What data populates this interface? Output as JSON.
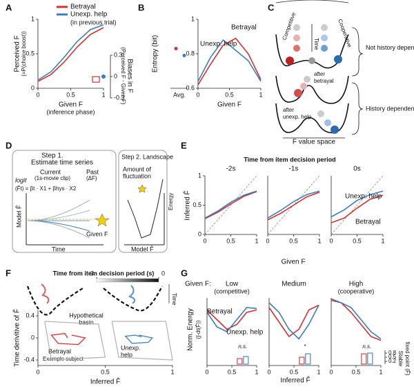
{
  "chart_data": [
    {
      "type": "line",
      "ylabel": "Perceived F",
      "ylabel_sub": "(=P(choice boost))",
      "xlabel": "Given F",
      "xlabel_sub": "(inference phase)",
      "legend_note": "(in previous trial)",
      "xlim": [
        0,
        1
      ],
      "xticks": [
        0,
        0.5,
        1
      ],
      "ylim": [
        0,
        1
      ],
      "yticks": [
        0,
        0.5,
        1
      ],
      "series": [
        {
          "name": "Betrayal",
          "color": "#d62f2f",
          "x": [
            0,
            0.2,
            0.4,
            0.6,
            0.8,
            1
          ],
          "values": [
            0.1,
            0.2,
            0.38,
            0.6,
            0.78,
            0.88
          ]
        },
        {
          "name": "Unexp. help",
          "color": "#3a7dbf",
          "x": [
            0,
            0.2,
            0.4,
            0.6,
            0.8,
            1
          ],
          "values": [
            0.12,
            0.24,
            0.45,
            0.68,
            0.85,
            0.92
          ]
        }
      ],
      "bias": {
        "ylabel": "Biases in F",
        "ylabel_sub": "(Perceived F - Given F)",
        "ylim": [
          -0.3,
          0.3
        ],
        "yticks": [
          -0.3,
          0,
          0.3
        ],
        "values": [
          -0.04,
          0
        ],
        "colors": [
          "#d62f2f",
          "#3a7dbf"
        ]
      }
    },
    {
      "type": "line",
      "ylabel": "Entropy (bit)",
      "xlabel": "Given F",
      "xlim": [
        0,
        1
      ],
      "xticks": [
        0,
        0.5,
        1
      ],
      "ylim": [
        0.6,
        1
      ],
      "yticks": [
        0.6,
        0.8,
        1
      ],
      "avg": {
        "label": "Avg.",
        "values": [
          0.83,
          0.79
        ]
      },
      "series": [
        {
          "name": "Betrayal",
          "color": "#d62f2f",
          "x": [
            0,
            0.2,
            0.4,
            0.6,
            0.8,
            1
          ],
          "values": [
            0.62,
            0.74,
            0.85,
            0.89,
            0.8,
            0.65
          ]
        },
        {
          "name": "Unexp. help",
          "color": "#3a7dbf",
          "x": [
            0,
            0.2,
            0.4,
            0.6,
            0.8,
            1
          ],
          "values": [
            0.64,
            0.78,
            0.88,
            0.82,
            0.76,
            0.64
          ]
        }
      ]
    },
    {
      "type": "line",
      "title": "-2s",
      "xlim": [
        0,
        1
      ],
      "xticks": [
        0,
        0.5,
        1
      ],
      "ylim": [
        0,
        1
      ],
      "yticks": [
        0,
        0.5,
        1
      ],
      "series": [
        {
          "color": "#d62f2f",
          "x": [
            0,
            0.25,
            0.5,
            0.75,
            1
          ],
          "values": [
            0.27,
            0.38,
            0.52,
            0.65,
            0.73
          ]
        },
        {
          "color": "#3a7dbf",
          "x": [
            0,
            0.25,
            0.5,
            0.75,
            1
          ],
          "values": [
            0.28,
            0.4,
            0.55,
            0.67,
            0.74
          ]
        }
      ]
    },
    {
      "type": "line",
      "title": "-1s",
      "xlim": [
        0,
        1
      ],
      "xticks": [
        0,
        0.5,
        1
      ],
      "ylim": [
        0,
        1
      ],
      "series": [
        {
          "color": "#d62f2f",
          "x": [
            0,
            0.25,
            0.5,
            0.75,
            1
          ],
          "values": [
            0.25,
            0.36,
            0.5,
            0.64,
            0.72
          ]
        },
        {
          "color": "#3a7dbf",
          "x": [
            0,
            0.25,
            0.5,
            0.75,
            1
          ],
          "values": [
            0.28,
            0.41,
            0.56,
            0.68,
            0.74
          ]
        }
      ]
    },
    {
      "type": "line",
      "title": "0s",
      "xlim": [
        0,
        1
      ],
      "xticks": [
        0,
        0.5,
        1
      ],
      "ylim": [
        0,
        1
      ],
      "series": [
        {
          "name": "Betrayal",
          "color": "#d62f2f",
          "x": [
            0,
            0.25,
            0.5,
            0.75,
            1
          ],
          "values": [
            0.2,
            0.28,
            0.45,
            0.6,
            0.67
          ]
        },
        {
          "name": "Unexp. help",
          "color": "#3a7dbf",
          "x": [
            0,
            0.25,
            0.5,
            0.75,
            1
          ],
          "values": [
            0.3,
            0.42,
            0.58,
            0.68,
            0.74
          ]
        }
      ]
    },
    {
      "type": "line",
      "title": "Low",
      "subtitle": "(competitive)",
      "xlim": [
        0,
        1
      ],
      "xticks": [
        0,
        0.5,
        1
      ],
      "ylim": [
        -0.4,
        1
      ],
      "series": [
        {
          "name": "Betrayal",
          "color": "#d62f2f",
          "x": [
            0,
            0.2,
            0.4,
            0.6,
            0.8,
            1
          ],
          "values": [
            0.75,
            0.55,
            0.35,
            0.45,
            0.7,
            0.75
          ]
        },
        {
          "name": "Unexp. help",
          "color": "#3a7dbf",
          "x": [
            0,
            0.2,
            0.4,
            0.6,
            0.8,
            1
          ],
          "values": [
            0.7,
            0.4,
            0.3,
            0.55,
            0.8,
            0.78
          ]
        }
      ],
      "bars": {
        "values": [
          0.4,
          0.55
        ],
        "ylim": [
          0,
          1
        ],
        "sig": "n.s."
      }
    },
    {
      "type": "line",
      "title": "Medium",
      "xlim": [
        0,
        1
      ],
      "xticks": [
        0,
        0.5,
        1
      ],
      "ylim": [
        -0.4,
        1
      ],
      "series": [
        {
          "color": "#d62f2f",
          "x": [
            0,
            0.2,
            0.4,
            0.6,
            0.8,
            1
          ],
          "values": [
            0.8,
            0.5,
            0.2,
            0.35,
            0.75,
            0.85
          ]
        },
        {
          "color": "#3a7dbf",
          "x": [
            0,
            0.2,
            0.4,
            0.6,
            0.8,
            1
          ],
          "values": [
            0.9,
            0.7,
            0.35,
            0.15,
            0.45,
            0.85
          ]
        }
      ],
      "bars": {
        "values": [
          0.5,
          0.75
        ],
        "ylim": [
          0,
          1
        ],
        "sig": "*"
      }
    },
    {
      "type": "line",
      "title": "High",
      "subtitle": "(cooperative)",
      "xlim": [
        0,
        1
      ],
      "xticks": [
        0,
        0.5,
        1
      ],
      "ylim": [
        -0.4,
        1
      ],
      "series": [
        {
          "color": "#d62f2f",
          "x": [
            0,
            0.2,
            0.4,
            0.6,
            0.8,
            1
          ],
          "values": [
            0.95,
            0.9,
            0.7,
            0.45,
            0.2,
            0.12
          ]
        },
        {
          "color": "#3a7dbf",
          "x": [
            0,
            0.2,
            0.4,
            0.6,
            0.8,
            1
          ],
          "values": [
            0.98,
            0.9,
            0.8,
            0.55,
            0.3,
            0.15
          ]
        }
      ],
      "bars": {
        "values": [
          0.75,
          0.8
        ],
        "ylim": [
          0,
          1
        ],
        "yticks": [
          0.2,
          0.5,
          0.8
        ],
        "sig": "n.s."
      }
    },
    {
      "type": "line",
      "xlabel": "Inferred F̂",
      "ylabel": "Time derivitive of F̂",
      "xlim": [
        0,
        1
      ],
      "xticks": [
        0,
        0.5,
        1
      ],
      "ylim": [
        -0.5,
        0.5
      ],
      "yticks": [
        -0.4,
        0,
        0.4
      ],
      "series": [
        {
          "color": "#b5b5b5",
          "x": [
            0.05,
            0.45,
            0.5,
            0.1,
            0.05
          ],
          "values": [
            0.3,
            0.25,
            -0.35,
            -0.4,
            0.3
          ]
        },
        {
          "color": "#b5b5b5",
          "x": [
            0.55,
            0.95,
            1,
            0.6,
            0.55
          ],
          "values": [
            0.3,
            0.3,
            -0.4,
            -0.35,
            0.3
          ]
        },
        {
          "color": "#d62f2f",
          "x": [
            0.25,
            0.35,
            0.3,
            0.15,
            0.1,
            0.2,
            0.22
          ],
          "values": [
            0.05,
            0,
            -0.12,
            -0.1,
            0.05,
            0.08,
            0
          ]
        },
        {
          "color": "#3a7dbf",
          "x": [
            0.75,
            0.85,
            0.82,
            0.7,
            0.65,
            0.72,
            0.77
          ],
          "values": [
            0.05,
            0,
            -0.08,
            -0.1,
            0.03,
            0.05,
            0.02
          ]
        }
      ]
    }
  ],
  "figure": {
    "labels": [
      "A",
      "B",
      "C",
      "D",
      "E",
      "F",
      "G"
    ],
    "C": {
      "competitive": "Competitive",
      "cooperative": "Cooperative",
      "time": "Time",
      "not_history": "Not history dependent",
      "after1": "after",
      "betrayal": "betrayal",
      "after2": "after",
      "help": "unexp. help",
      "history": "History dependent",
      "space": "F value space"
    },
    "D": {
      "step1": "Step 1.",
      "step1_sub": "Estimate time series",
      "current": "Current",
      "current_sub": "(1s-movie clip)",
      "past": "Past",
      "past_sub": "(ΔF)",
      "logit": "logit",
      "formula": "(F̂t) = βt · X1 + βhys · X2",
      "model": "Model F̂",
      "time": "Time",
      "given": "Given F",
      "step2": "Step 2. Landscape",
      "fluct1": "Amount of",
      "fluct2": "fluctuation",
      "energy": "Energy",
      "model2": "Model F̂"
    },
    "E": {
      "header": "Time from item decision period",
      "ylabel": "Inferred F̂",
      "xlabel": "Given F"
    },
    "F": {
      "header": "Time from item decision period (s)",
      "colorbar": [
        -3,
        0
      ],
      "time": "Time",
      "basin1": "Hypothetical",
      "basin2": "basin",
      "betrayal": "Betrayal",
      "example": "Example subject",
      "help1": "Unexp.",
      "help2": "help"
    },
    "G": {
      "given": "Given F:",
      "ylabel": "Norm. Energy",
      "ylabel_sub": "(∫-dt(F̂))",
      "xlabel": "Inferred F̂",
      "bar_label1": "Stable",
      "bar_label2": "fixed point (F̂)"
    }
  }
}
